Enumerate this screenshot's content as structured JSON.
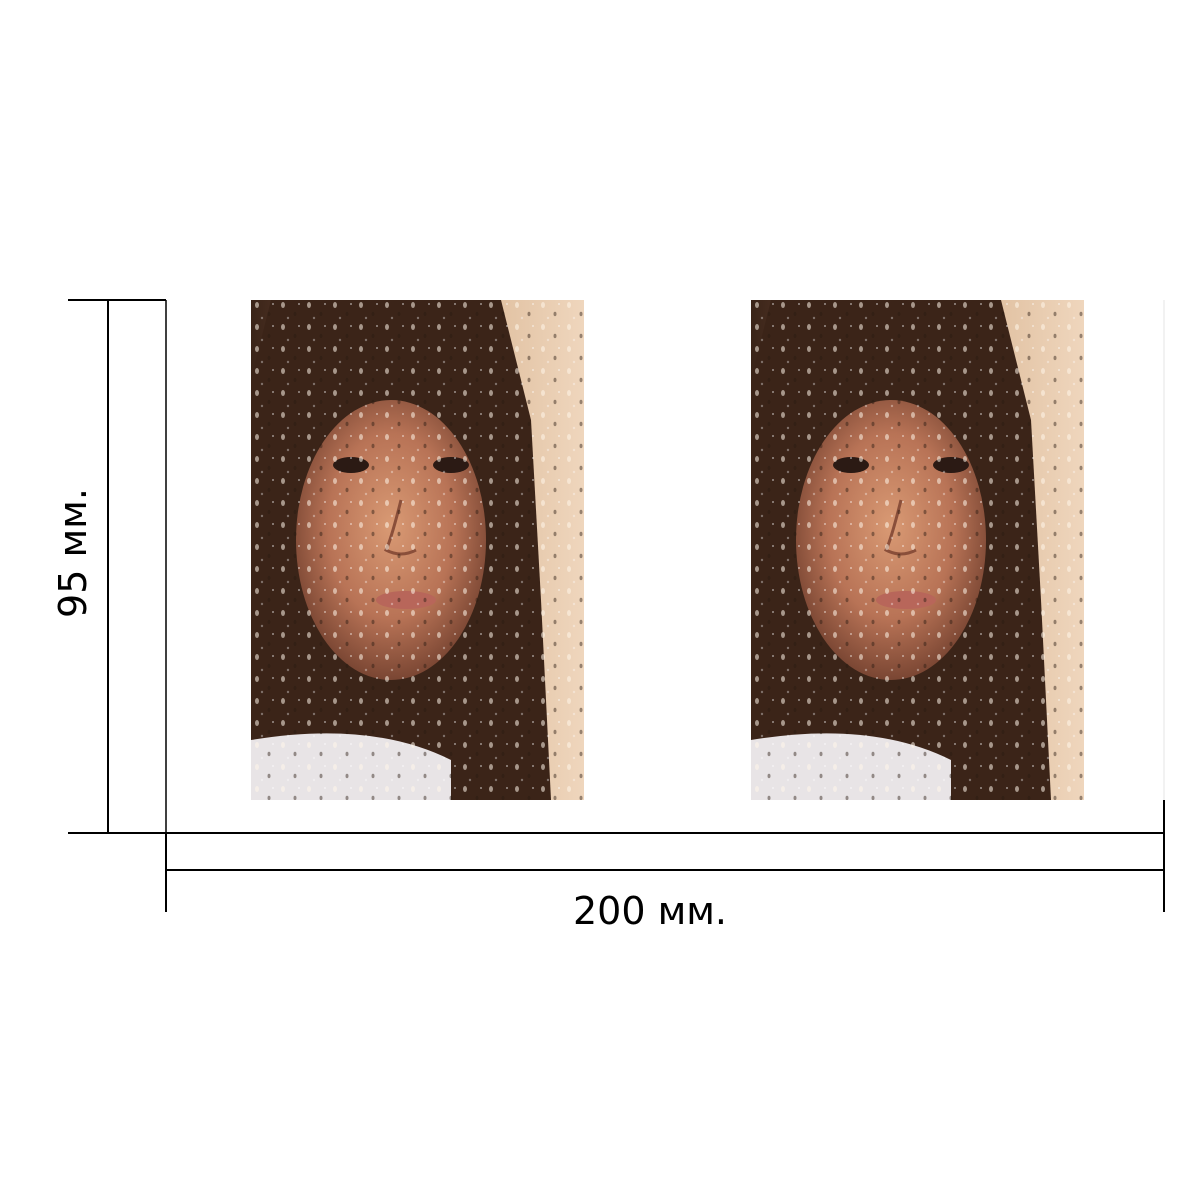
{
  "dimensions": {
    "width_label": "200 мм.",
    "height_label": "95 мм."
  },
  "photos": [
    {
      "subject": "girl-behind-rainy-glass-portrait"
    },
    {
      "subject": "girl-behind-rainy-glass-portrait"
    }
  ],
  "colors": {
    "line": "#000000",
    "background": "#ffffff"
  }
}
